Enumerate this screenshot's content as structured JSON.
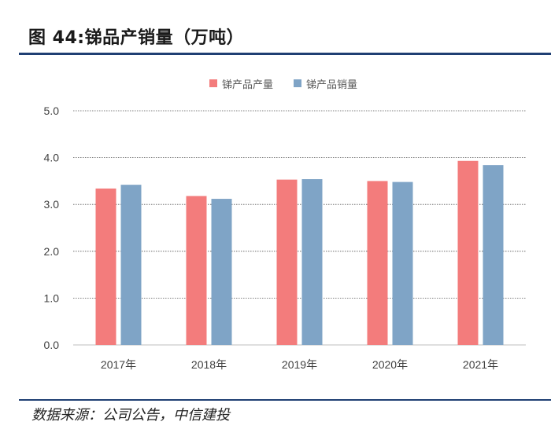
{
  "header": {
    "title": "图 44:锑品产销量（万吨）"
  },
  "footer": {
    "source": "数据来源：公司公告，中信建投"
  },
  "chart_data": {
    "type": "bar",
    "title": "",
    "xlabel": "",
    "ylabel": "",
    "categories": [
      "2017年",
      "2018年",
      "2019年",
      "2020年",
      "2021年"
    ],
    "series": [
      {
        "name": "锑产品产量",
        "values": [
          3.34,
          3.18,
          3.53,
          3.5,
          3.93
        ],
        "color": "#f37c7c"
      },
      {
        "name": "锑产品销量",
        "values": [
          3.42,
          3.12,
          3.54,
          3.48,
          3.84
        ],
        "color": "#7fa4c6"
      }
    ],
    "ylim": [
      0,
      5
    ],
    "yticks": [
      "0.0",
      "1.0",
      "2.0",
      "3.0",
      "4.0",
      "5.0"
    ],
    "grid": true,
    "legend_position": "top-center"
  }
}
